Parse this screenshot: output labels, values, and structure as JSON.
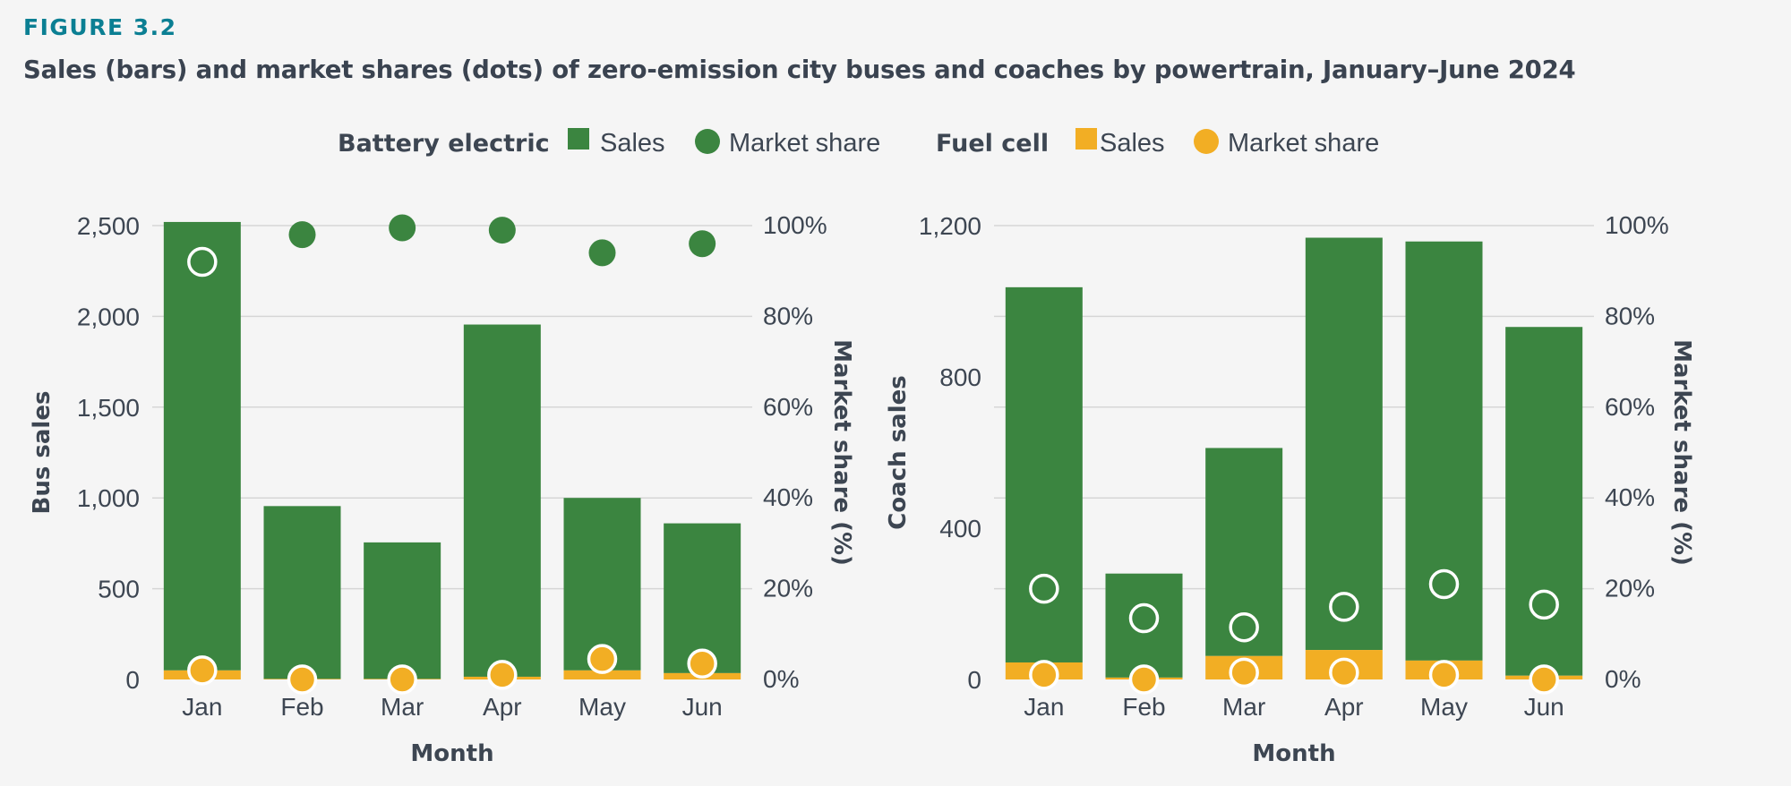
{
  "figure_label": "FIGURE 3.2",
  "title": "Sales (bars) and market shares (dots) of zero-emission city buses and coaches by powertrain, January–June 2024",
  "colors": {
    "battery_electric": "#3b8540",
    "fuel_cell": "#f2ae24",
    "grid": "#d6d6d6",
    "text": "#3d4652",
    "marker_outline": "#ffffff"
  },
  "legend": {
    "groups": [
      {
        "heading": "Battery electric",
        "items": [
          {
            "label": "Sales",
            "marker": "square"
          },
          {
            "label": "Market share",
            "marker": "circle"
          }
        ]
      },
      {
        "heading": "Fuel cell",
        "items": [
          {
            "label": "Sales",
            "marker": "square"
          },
          {
            "label": "Market share",
            "marker": "circle"
          }
        ]
      }
    ]
  },
  "chart_data": [
    {
      "type": "bar",
      "stacked": true,
      "categories": [
        "Jan",
        "Feb",
        "Mar",
        "Apr",
        "May",
        "Jun"
      ],
      "xlabel": "Month",
      "ylabel": "Bus sales",
      "ylim": [
        0,
        2500
      ],
      "yticks": [
        0,
        500,
        1000,
        1500,
        2000,
        2500
      ],
      "ytick_labels": [
        "0",
        "500",
        "1,000",
        "1,500",
        "2,000",
        "2,500"
      ],
      "y2label": "Market share (%)",
      "y2lim": [
        0,
        100
      ],
      "y2ticks": [
        0,
        20,
        40,
        60,
        80,
        100
      ],
      "y2tick_labels": [
        "0%",
        "20%",
        "40%",
        "60%",
        "80%",
        "100%"
      ],
      "grid": true,
      "series": [
        {
          "name": "Fuel cell sales",
          "kind": "bar",
          "values": [
            50,
            3,
            3,
            15,
            50,
            35
          ]
        },
        {
          "name": "Battery electric sales",
          "kind": "bar",
          "values": [
            2470,
            952,
            752,
            1940,
            950,
            825
          ]
        },
        {
          "name": "Battery electric market share",
          "kind": "dot",
          "values": [
            92,
            98,
            99.5,
            99,
            94,
            96
          ]
        },
        {
          "name": "Fuel cell market share",
          "kind": "dot",
          "values": [
            2,
            0,
            0,
            1,
            4.5,
            3.5
          ]
        }
      ]
    },
    {
      "type": "bar",
      "stacked": true,
      "categories": [
        "Jan",
        "Feb",
        "Mar",
        "Apr",
        "May",
        "Jun"
      ],
      "xlabel": "Month",
      "ylabel": "Coach sales",
      "ylim": [
        0,
        1200
      ],
      "yticks": [
        0,
        400,
        800,
        1200
      ],
      "ytick_labels": [
        "0",
        "400",
        "800",
        "1,200"
      ],
      "y2label": "Market share (%)",
      "y2lim": [
        0,
        100
      ],
      "y2ticks": [
        0,
        20,
        40,
        60,
        80,
        100
      ],
      "y2tick_labels": [
        "0%",
        "20%",
        "40%",
        "60%",
        "80%",
        "100%"
      ],
      "grid": true,
      "series": [
        {
          "name": "Fuel cell sales",
          "kind": "bar",
          "values": [
            45,
            5,
            62,
            78,
            50,
            10
          ]
        },
        {
          "name": "Battery electric sales",
          "kind": "bar",
          "values": [
            992,
            275,
            550,
            1090,
            1108,
            922
          ]
        },
        {
          "name": "Battery electric market share",
          "kind": "dot",
          "values": [
            20,
            13.5,
            11.5,
            16,
            21,
            16.5
          ]
        },
        {
          "name": "Fuel cell market share",
          "kind": "dot",
          "values": [
            1,
            0,
            1.5,
            1.5,
            1,
            0
          ]
        }
      ]
    }
  ]
}
